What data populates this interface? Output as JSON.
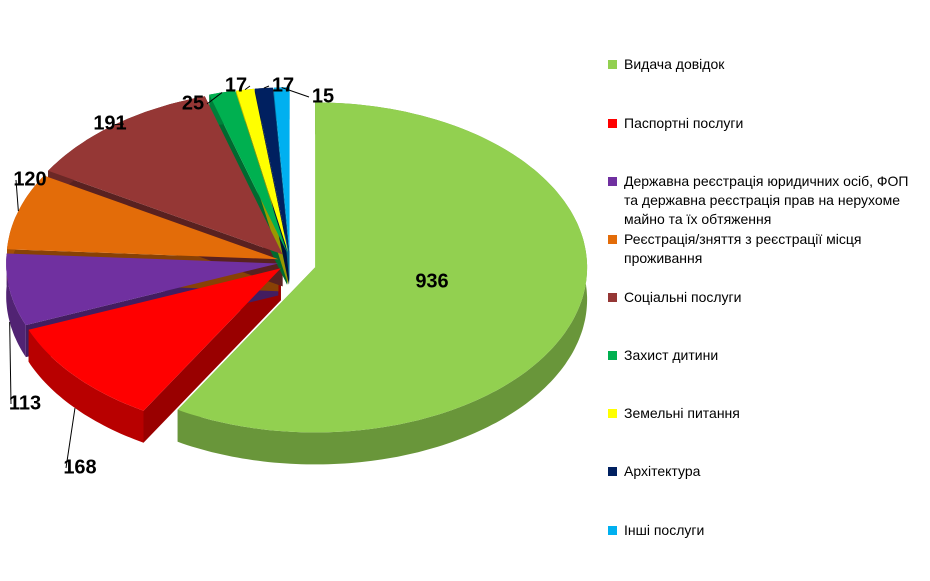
{
  "chart_data": {
    "type": "pie",
    "categories": [
      "Видача довідок",
      "Паспортні послуги",
      "Державна реєстрація юридичних осіб, ФОП та державна реєстрація прав на нерухоме майно та їх обтяження",
      "Реєстрація/зняття з реєстрації місця проживання",
      "Соціальні послуги",
      "Захист дитини",
      "Земельні питання",
      "Архітектура",
      "Інші послуги"
    ],
    "values": [
      936,
      168,
      113,
      120,
      191,
      25,
      17,
      17,
      15
    ],
    "colors": [
      "#92d050",
      "#ff0000",
      "#7030a0",
      "#e36c09",
      "#953735",
      "#00b050",
      "#ffff00",
      "#002060",
      "#00b0f0"
    ],
    "legend": "right"
  }
}
